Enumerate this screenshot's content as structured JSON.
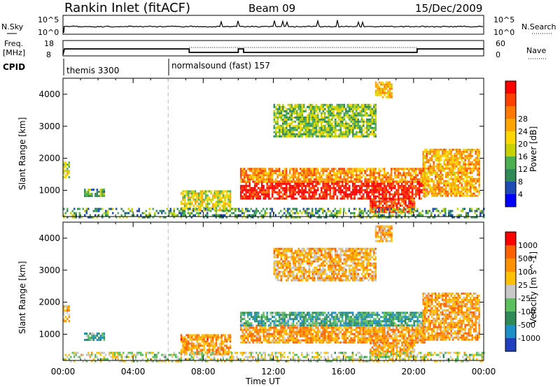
{
  "header": {
    "title": "Rankin Inlet (fitACF)",
    "beam": "Beam 09",
    "date": "15/Dec/2009"
  },
  "strip1": {
    "left_label": "N.Sky",
    "right_label": "N.Search",
    "left_ticks": [
      "10^5",
      "10^0"
    ],
    "right_ticks": [
      "10^5",
      "10^0"
    ],
    "left_tick_values": [
      100000,
      1
    ],
    "right_tick_values": [
      100000,
      1
    ]
  },
  "strip2": {
    "left_label_line1": "Freq.",
    "left_label_line2": "[MHz]",
    "right_label": "Nave",
    "left_ticks": [
      "18",
      "8"
    ],
    "right_ticks": [
      "60",
      "0"
    ],
    "left_tick_values": [
      18,
      8
    ],
    "right_tick_values": [
      60,
      0
    ]
  },
  "cpid": {
    "label": "CPID",
    "segments": [
      {
        "label": "themis 3300",
        "start_hour": 0
      },
      {
        "label": "normalsound (fast) 157",
        "start_hour": 6
      }
    ]
  },
  "panels": {
    "ylabel": "Slant Range [km]",
    "xlabel": "Time UT",
    "yticks": [
      "1000",
      "2000",
      "3000",
      "4000"
    ],
    "xticks": [
      "00:00",
      "04:00",
      "08:00",
      "12:00",
      "16:00",
      "20:00",
      "00:00"
    ]
  },
  "power_scale": {
    "label": "Power [dB]",
    "ticks": [
      "4",
      "8",
      "12",
      "16",
      "20",
      "24",
      "28"
    ],
    "colors": [
      "#0000ff",
      "#1e4bb4",
      "#2e8b57",
      "#4caf50",
      "#c8d200",
      "#ffd700",
      "#ffa500",
      "#ff7800",
      "#ff4000",
      "#ff0000"
    ]
  },
  "velocity_scale": {
    "label": "Velocity [m s^-1]",
    "ticks": [
      "1000",
      "500",
      "100",
      "25",
      "-25",
      "-100",
      "-500",
      "-1000"
    ],
    "colors": [
      "#2040c0",
      "#1e90c8",
      "#2e8b57",
      "#5cc05c",
      "#c8c8c8",
      "#ffc000",
      "#ff9000",
      "#ff6000",
      "#ff0000"
    ]
  },
  "chart_data": {
    "type": "heatmap",
    "x_range_hours": [
      0,
      24
    ],
    "y_range_km": [
      180,
      4500
    ],
    "power_regions": [
      {
        "t0": 0.0,
        "t1": 0.35,
        "r0": 1400,
        "r1": 1900,
        "level": 0.45
      },
      {
        "t0": 1.2,
        "t1": 2.3,
        "r0": 800,
        "r1": 1050,
        "level": 0.3
      },
      {
        "t0": 6.7,
        "t1": 9.5,
        "r0": 400,
        "r1": 1000,
        "level": 0.5
      },
      {
        "t0": 10.1,
        "t1": 20.6,
        "r0": 750,
        "r1": 1300,
        "level": 0.95
      },
      {
        "t0": 10.1,
        "t1": 20.6,
        "r0": 1300,
        "r1": 1700,
        "level": 0.7
      },
      {
        "t0": 17.5,
        "t1": 20.0,
        "r0": 300,
        "r1": 750,
        "level": 0.85
      },
      {
        "t0": 20.5,
        "t1": 23.7,
        "r0": 800,
        "r1": 2300,
        "level": 0.65
      },
      {
        "t0": 12.0,
        "t1": 17.8,
        "r0": 2700,
        "r1": 3700,
        "level": 0.4
      },
      {
        "t0": 17.8,
        "t1": 18.7,
        "r0": 3900,
        "r1": 4400,
        "level": 0.6
      },
      {
        "t0": 0.0,
        "t1": 24.0,
        "r0": 180,
        "r1": 450,
        "level": 0.3
      }
    ],
    "velocity_regions": [
      {
        "t0": 0.0,
        "t1": 0.35,
        "r0": 1400,
        "r1": 1900,
        "level": 0.65
      },
      {
        "t0": 1.2,
        "t1": 2.3,
        "r0": 800,
        "r1": 1050,
        "level": 0.3
      },
      {
        "t0": 6.7,
        "t1": 9.5,
        "r0": 400,
        "r1": 1000,
        "level": 0.72
      },
      {
        "t0": 10.1,
        "t1": 20.6,
        "r0": 750,
        "r1": 1300,
        "level": 0.7
      },
      {
        "t0": 10.1,
        "t1": 20.6,
        "r0": 1300,
        "r1": 1700,
        "level": 0.3
      },
      {
        "t0": 17.5,
        "t1": 20.0,
        "r0": 300,
        "r1": 750,
        "level": 0.68
      },
      {
        "t0": 20.5,
        "t1": 23.7,
        "r0": 800,
        "r1": 2300,
        "level": 0.68
      },
      {
        "t0": 12.0,
        "t1": 17.8,
        "r0": 2700,
        "r1": 3700,
        "level": 0.65
      },
      {
        "t0": 17.8,
        "t1": 18.7,
        "r0": 3900,
        "r1": 4400,
        "level": 0.65
      },
      {
        "t0": 0.0,
        "t1": 24.0,
        "r0": 180,
        "r1": 450,
        "level": 0.5
      }
    ]
  }
}
